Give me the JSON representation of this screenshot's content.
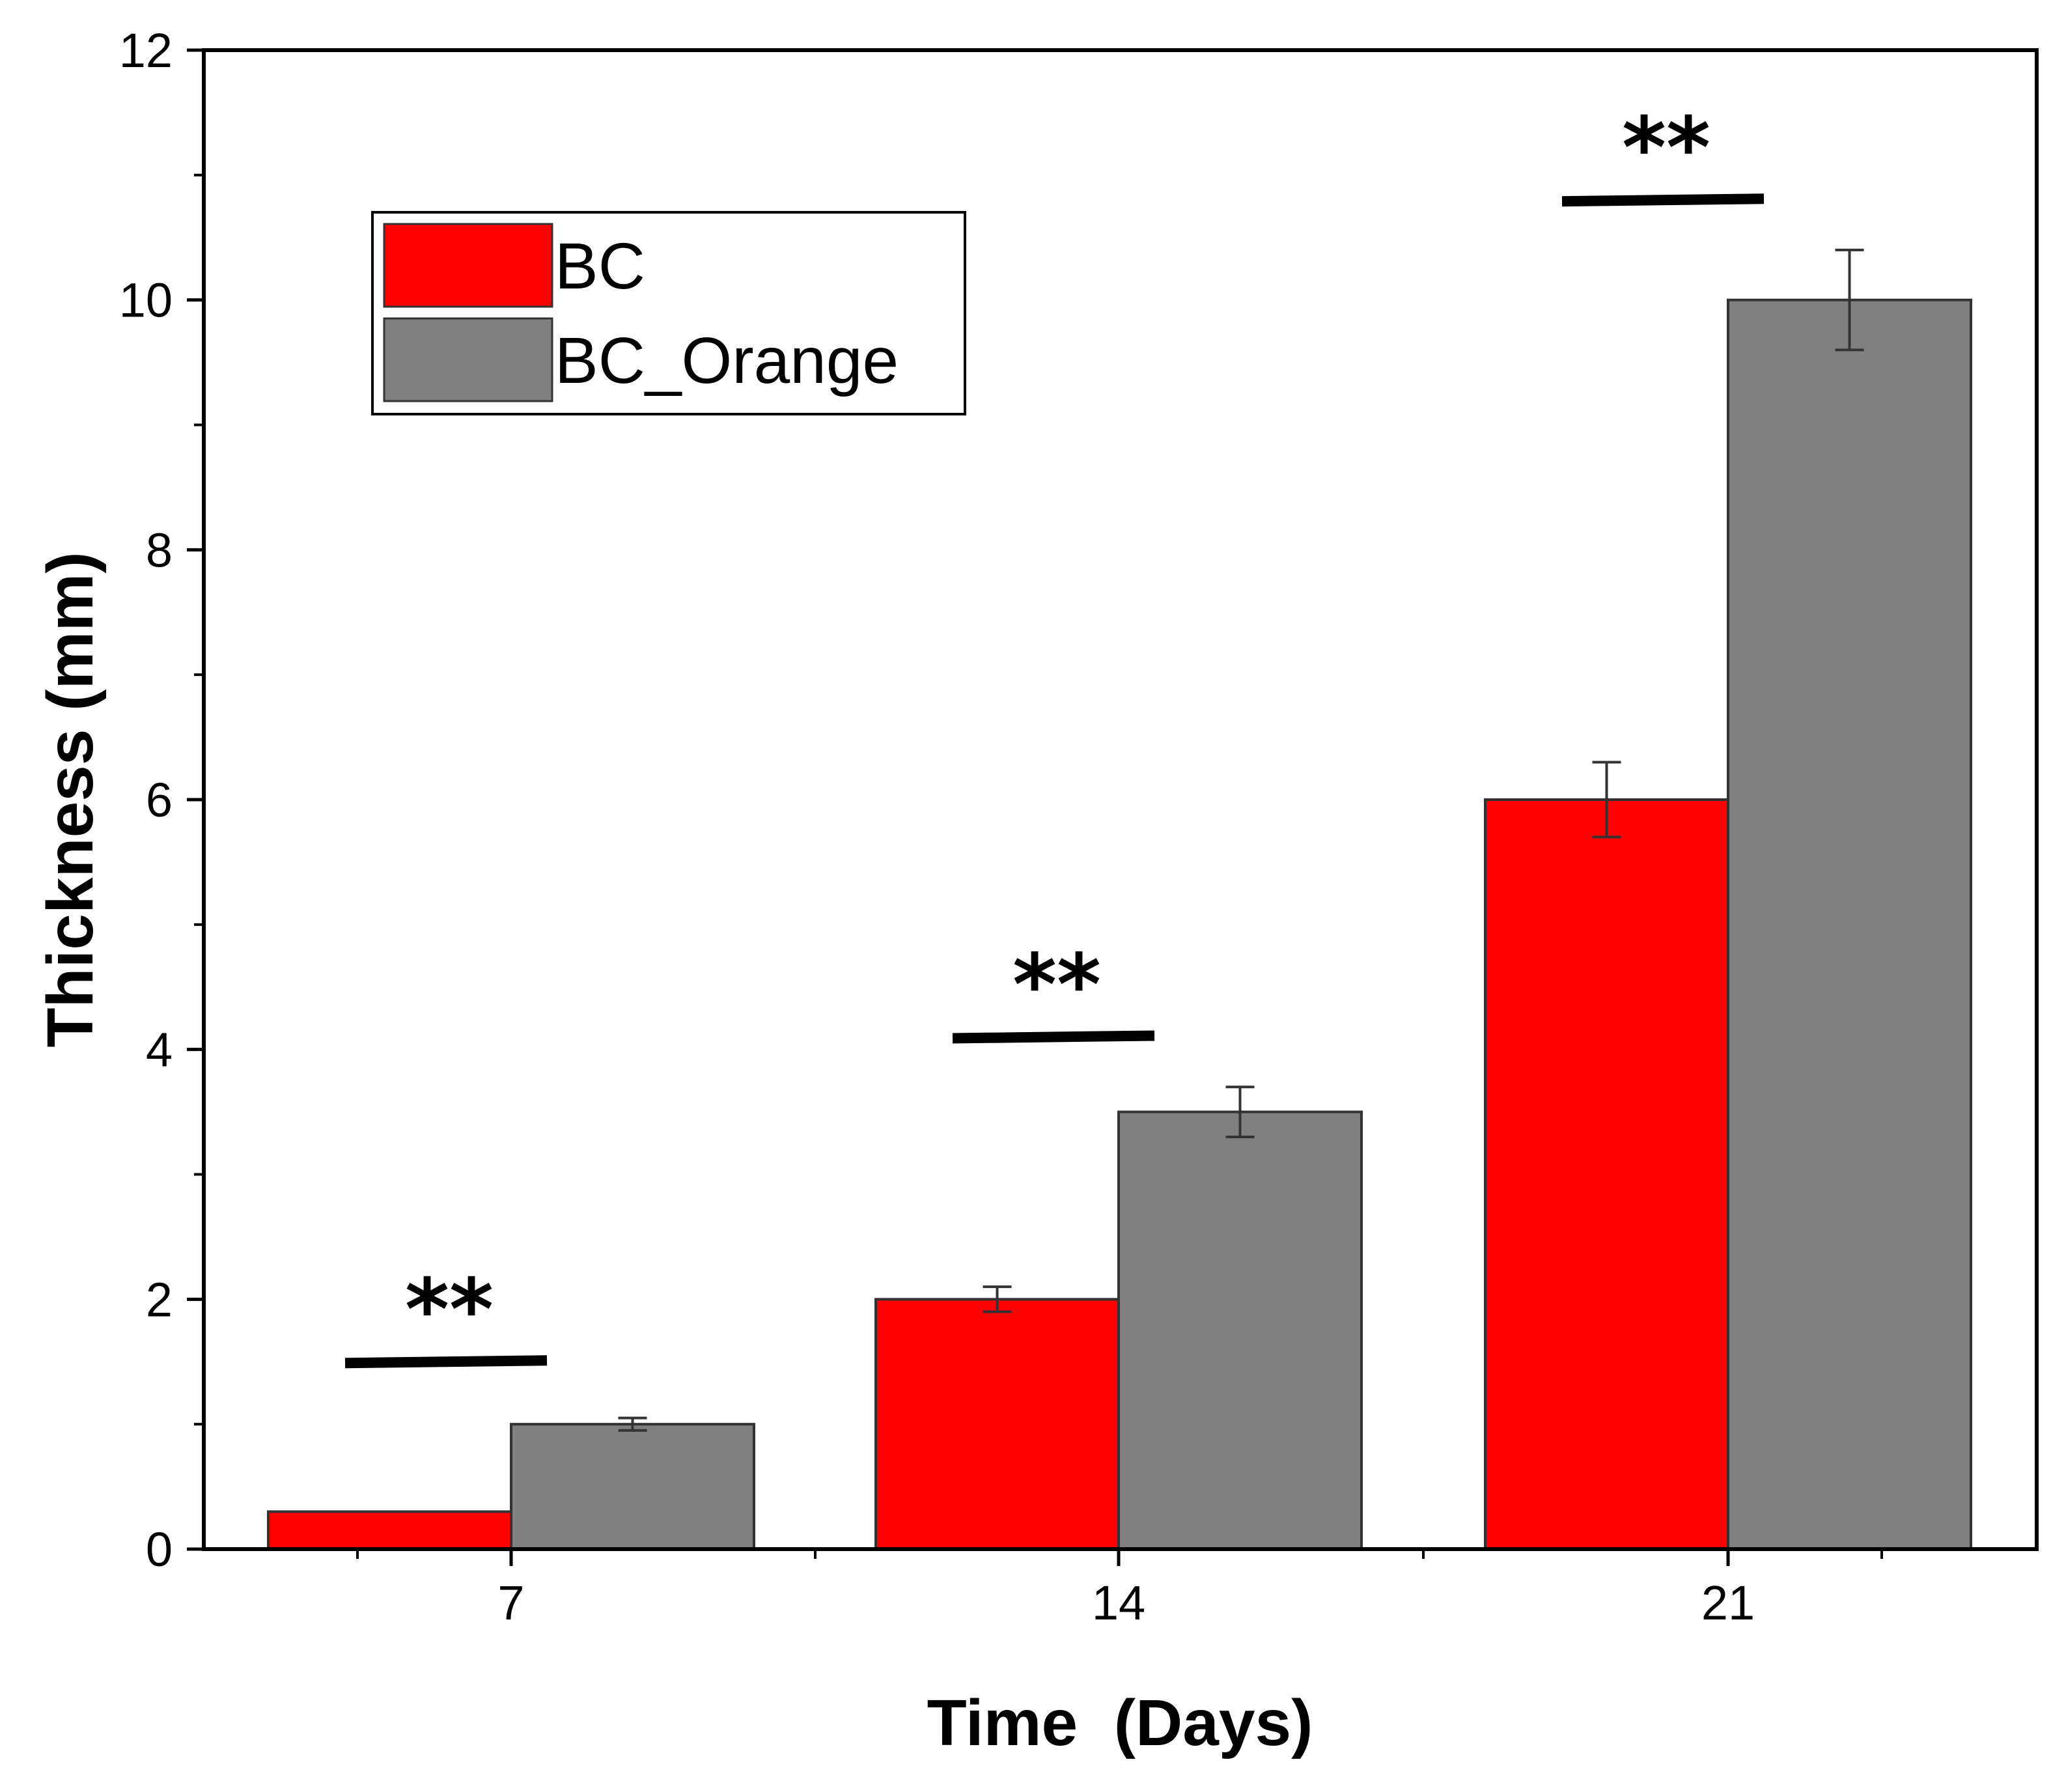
{
  "chart_data": {
    "type": "bar",
    "title": "",
    "xlabel": "Time  (Days)",
    "ylabel": "Thickness (mm)",
    "categories": [
      "7",
      "14",
      "21"
    ],
    "ylim": [
      0,
      12
    ],
    "yticks": [
      "0",
      "2",
      "4",
      "6",
      "8",
      "10",
      "12"
    ],
    "grid": false,
    "legend_position": "top-left",
    "series": [
      {
        "name": "BC",
        "color": "#ff0000",
        "values": [
          0.3,
          2.0,
          6.0
        ],
        "errors": [
          0.0,
          0.1,
          0.3
        ]
      },
      {
        "name": "BC_Orange",
        "color": "#808080",
        "values": [
          1.0,
          3.5,
          10.0
        ],
        "errors": [
          0.05,
          0.2,
          0.4
        ]
      }
    ],
    "annotations": [
      {
        "category": "7",
        "text": "**",
        "y": 1.5
      },
      {
        "category": "14",
        "text": "**",
        "y": 4.1
      },
      {
        "category": "21",
        "text": "**",
        "y": 10.8
      }
    ]
  }
}
